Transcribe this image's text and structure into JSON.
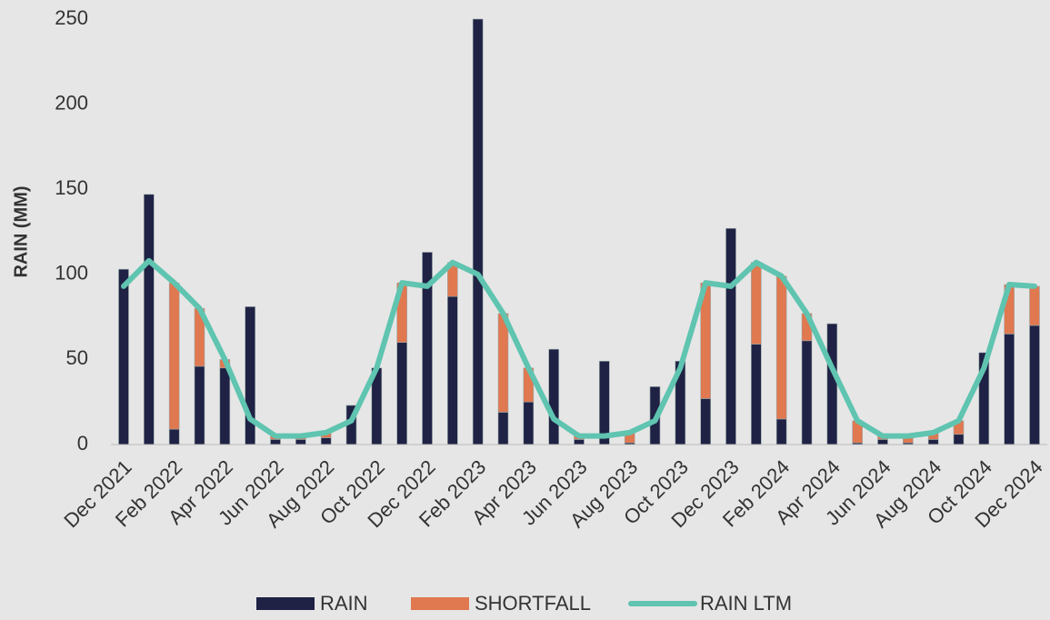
{
  "chart_data": {
    "type": "bar-line",
    "y_label": "RAIN (MM)",
    "categories": [
      "Dec 2021",
      null,
      "Feb 2022",
      null,
      "Apr 2022",
      null,
      "Jun 2022",
      null,
      "Aug 2022",
      null,
      "Oct 2022",
      null,
      "Dec 2022",
      null,
      "Feb 2023",
      null,
      "Apr 2023",
      null,
      "Jun 2023",
      null,
      "Aug 2023",
      null,
      "Oct 2023",
      null,
      "Dec 2023",
      null,
      "Feb 2024",
      null,
      "Apr 2024",
      null,
      "Jun 2024",
      null,
      "Aug 2024",
      null,
      "Oct 2024",
      null,
      "Dec 2024"
    ],
    "series": [
      {
        "name": "RAIN",
        "kind": "bar",
        "color": "#1f2244",
        "values": [
          103,
          147,
          9,
          46,
          45,
          81,
          3,
          3,
          4,
          23,
          45,
          60,
          113,
          87,
          250,
          19,
          25,
          56,
          3,
          49,
          1,
          34,
          49,
          27,
          127,
          59,
          15,
          61,
          71,
          1,
          3,
          1,
          3,
          6,
          54,
          65,
          70
        ]
      },
      {
        "name": "SHORTFALL",
        "kind": "stacked-bar",
        "color": "#e07850",
        "values": [
          0,
          0,
          86,
          34,
          5,
          0,
          2,
          2,
          3,
          0,
          0,
          35,
          0,
          20,
          0,
          58,
          20,
          0,
          2,
          0,
          6,
          0,
          0,
          68,
          0,
          48,
          84,
          16,
          0,
          13,
          2,
          4,
          4,
          8,
          0,
          29,
          23
        ]
      },
      {
        "name": "RAIN LTM",
        "kind": "line",
        "color": "#5fc4b0",
        "values": [
          93,
          108,
          95,
          80,
          50,
          15,
          5,
          5,
          7,
          14,
          45,
          95,
          93,
          107,
          100,
          77,
          45,
          15,
          5,
          5,
          7,
          14,
          45,
          95,
          93,
          107,
          99,
          77,
          45,
          14,
          5,
          5,
          7,
          14,
          45,
          94,
          93
        ]
      }
    ],
    "ylim": [
      0,
      250
    ],
    "yticks": [
      0,
      50,
      100,
      150,
      200,
      250
    ],
    "grid": false
  }
}
